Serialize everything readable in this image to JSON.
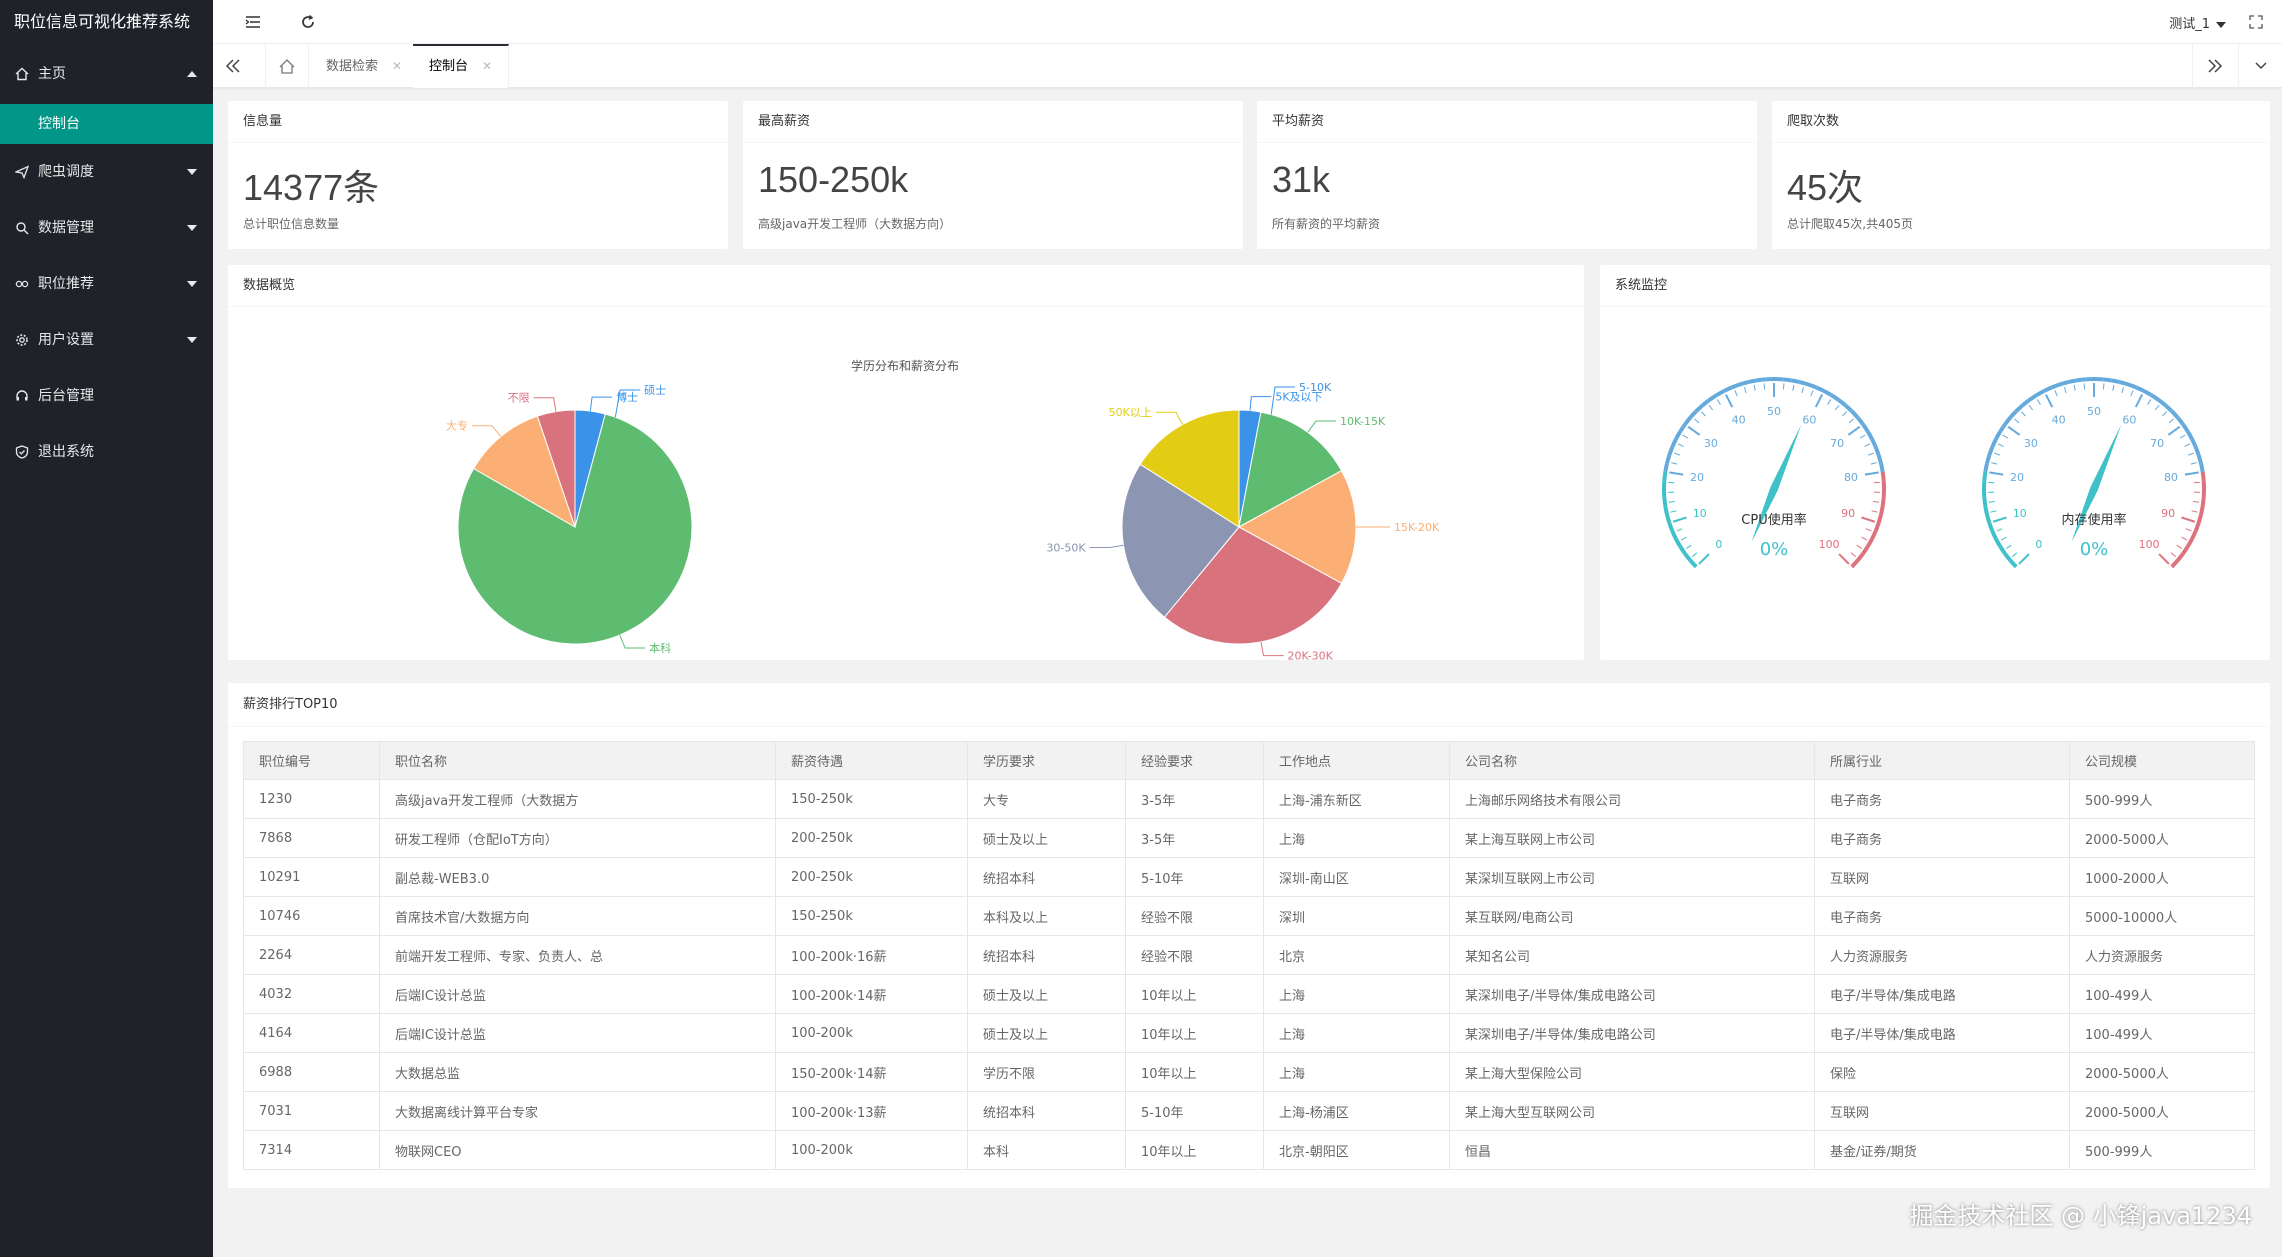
{
  "app": {
    "title": "职位信息可视化推荐系统"
  },
  "sidebar": {
    "items": [
      {
        "label": "主页",
        "icon": "home-icon"
      },
      {
        "label": "爬虫调度",
        "icon": "send-icon"
      },
      {
        "label": "数据管理",
        "icon": "search-icon"
      },
      {
        "label": "职位推荐",
        "icon": "link-icon"
      },
      {
        "label": "用户设置",
        "icon": "gear-icon"
      },
      {
        "label": "后台管理",
        "icon": "headset-icon"
      },
      {
        "label": "退出系统",
        "icon": "shield-icon"
      }
    ],
    "sub_item": "控制台"
  },
  "header": {
    "user": "测试_1"
  },
  "tabs": [
    {
      "label": "数据检索"
    },
    {
      "label": "控制台"
    }
  ],
  "stats": [
    {
      "title": "信息量",
      "value": "14377条",
      "sub": "总计职位信息数量"
    },
    {
      "title": "最高薪资",
      "value": "150-250k",
      "sub": "高级java开发工程师（大数据方向）"
    },
    {
      "title": "平均薪资",
      "value": "31k",
      "sub": "所有薪资的平均薪资"
    },
    {
      "title": "爬取次数",
      "value": "45次",
      "sub": "总计爬取45次,共405页"
    }
  ],
  "overview": {
    "title": "数据概览",
    "chart_title": "学历分布和薪资分布"
  },
  "monitor": {
    "title": "系统监控",
    "gauges": [
      {
        "name": "CPU使用率",
        "value": "0%",
        "ticks": [
          "0",
          "10",
          "20",
          "30",
          "40",
          "50",
          "60",
          "70",
          "80",
          "90",
          "100"
        ]
      },
      {
        "name": "内存使用率",
        "value": "0%",
        "ticks": [
          "0",
          "10",
          "20",
          "30",
          "40",
          "50",
          "60",
          "70",
          "80",
          "90",
          "100"
        ]
      }
    ]
  },
  "chart_data": [
    {
      "type": "pie",
      "title": "学历分布和薪资分布",
      "categories": [
        "博士",
        "硕士",
        "本科",
        "大专",
        "不限"
      ],
      "values": [
        4,
        0,
        76,
        11,
        5
      ],
      "colors": [
        "#3a93e8",
        "#3a93e8",
        "#5ebc71",
        "#fcaf74",
        "#d8737e"
      ]
    },
    {
      "type": "pie",
      "categories": [
        "5K及以下",
        "5-10K",
        "10K-15K",
        "15K-20K",
        "20K-30K",
        "30-50K",
        "50K以上"
      ],
      "values": [
        3,
        0,
        14,
        16,
        28,
        23,
        16
      ],
      "colors": [
        "#3a93e8",
        "#3a93e8",
        "#5ebc71",
        "#fcaf74",
        "#d8737e",
        "#8c96b2",
        "#e3cd14"
      ]
    }
  ],
  "table": {
    "title": "薪资排行TOP10",
    "headers": [
      "职位编号",
      "职位名称",
      "薪资待遇",
      "学历要求",
      "经验要求",
      "工作地点",
      "公司名称",
      "所属行业",
      "公司规模"
    ],
    "rows": [
      [
        "1230",
        "高级java开发工程师（大数据方",
        "150-250k",
        "大专",
        "3-5年",
        "上海-浦东新区",
        "上海邮乐网络技术有限公司",
        "电子商务",
        "500-999人"
      ],
      [
        "7868",
        "研发工程师（仓配IoT方向）",
        "200-250k",
        "硕士及以上",
        "3-5年",
        "上海",
        "某上海互联网上市公司",
        "电子商务",
        "2000-5000人"
      ],
      [
        "10291",
        "副总裁-WEB3.0",
        "200-250k",
        "统招本科",
        "5-10年",
        "深圳-南山区",
        "某深圳互联网上市公司",
        "互联网",
        "1000-2000人"
      ],
      [
        "10746",
        "首席技术官/大数据方向",
        "150-250k",
        "本科及以上",
        "经验不限",
        "深圳",
        "某互联网/电商公司",
        "电子商务",
        "5000-10000人"
      ],
      [
        "2264",
        "前端开发工程师、专家、负责人、总",
        "100-200k·16薪",
        "统招本科",
        "经验不限",
        "北京",
        "某知名公司",
        "人力资源服务",
        "人力资源服务"
      ],
      [
        "4032",
        "后端IC设计总监",
        "100-200k·14薪",
        "硕士及以上",
        "10年以上",
        "上海",
        "某深圳电子/半导体/集成电路公司",
        "电子/半导体/集成电路",
        "100-499人"
      ],
      [
        "4164",
        "后端IC设计总监",
        "100-200k",
        "硕士及以上",
        "10年以上",
        "上海",
        "某深圳电子/半导体/集成电路公司",
        "电子/半导体/集成电路",
        "100-499人"
      ],
      [
        "6988",
        "大数据总监",
        "150-200k·14薪",
        "学历不限",
        "10年以上",
        "上海",
        "某上海大型保险公司",
        "保险",
        "2000-5000人"
      ],
      [
        "7031",
        "大数据离线计算平台专家",
        "100-200k·13薪",
        "统招本科",
        "5-10年",
        "上海-杨浦区",
        "某上海大型互联网公司",
        "互联网",
        "2000-5000人"
      ],
      [
        "7314",
        "物联网CEO",
        "100-200k",
        "本科",
        "10年以上",
        "北京-朝阳区",
        "恒昌",
        "基金/证券/期货",
        "500-999人"
      ]
    ]
  },
  "watermark": "掘金技术社区 @ 小锋java1234"
}
